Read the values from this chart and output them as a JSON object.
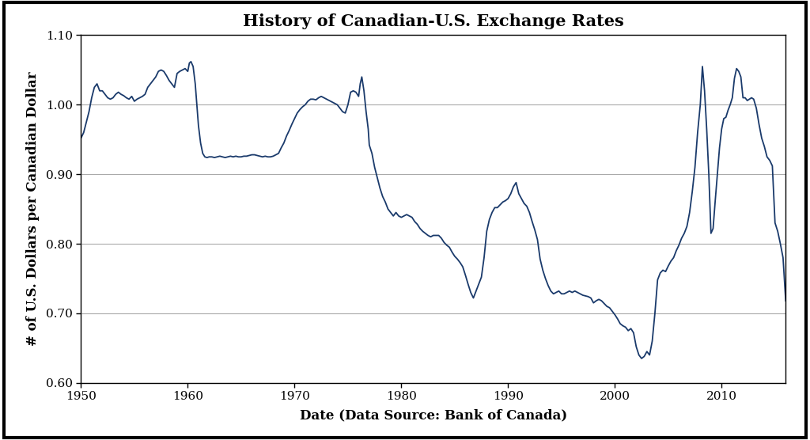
{
  "title": "History of Canadian-U.S. Exchange Rates",
  "xlabel": "Date (Data Source: Bank of Canada)",
  "ylabel": "# of U.S. Dollars per Canadian Dollar",
  "xlim": [
    1950,
    2016
  ],
  "ylim": [
    0.6,
    1.1
  ],
  "yticks": [
    0.6,
    0.7,
    0.8,
    0.9,
    1.0,
    1.1
  ],
  "xticks": [
    1950,
    1960,
    1970,
    1980,
    1990,
    2000,
    2010
  ],
  "line_color": "#1a3a6b",
  "line_width": 1.3,
  "background_color": "#ffffff",
  "title_fontsize": 15,
  "label_fontsize": 12,
  "tick_fontsize": 11,
  "data": [
    [
      1950.0,
      0.952
    ],
    [
      1950.25,
      0.96
    ],
    [
      1950.5,
      0.975
    ],
    [
      1950.75,
      0.99
    ],
    [
      1951.0,
      1.01
    ],
    [
      1951.25,
      1.025
    ],
    [
      1951.5,
      1.03
    ],
    [
      1951.75,
      1.02
    ],
    [
      1952.0,
      1.02
    ],
    [
      1952.25,
      1.015
    ],
    [
      1952.5,
      1.01
    ],
    [
      1952.75,
      1.008
    ],
    [
      1953.0,
      1.01
    ],
    [
      1953.25,
      1.015
    ],
    [
      1953.5,
      1.018
    ],
    [
      1953.75,
      1.015
    ],
    [
      1954.0,
      1.013
    ],
    [
      1954.25,
      1.01
    ],
    [
      1954.5,
      1.008
    ],
    [
      1954.75,
      1.012
    ],
    [
      1955.0,
      1.005
    ],
    [
      1955.25,
      1.008
    ],
    [
      1955.5,
      1.01
    ],
    [
      1955.75,
      1.012
    ],
    [
      1956.0,
      1.015
    ],
    [
      1956.25,
      1.025
    ],
    [
      1956.5,
      1.03
    ],
    [
      1956.75,
      1.035
    ],
    [
      1957.0,
      1.04
    ],
    [
      1957.25,
      1.048
    ],
    [
      1957.5,
      1.05
    ],
    [
      1957.75,
      1.048
    ],
    [
      1958.0,
      1.042
    ],
    [
      1958.25,
      1.035
    ],
    [
      1958.5,
      1.03
    ],
    [
      1958.75,
      1.025
    ],
    [
      1959.0,
      1.045
    ],
    [
      1959.25,
      1.048
    ],
    [
      1959.5,
      1.05
    ],
    [
      1959.75,
      1.052
    ],
    [
      1960.0,
      1.048
    ],
    [
      1960.15,
      1.06
    ],
    [
      1960.3,
      1.062
    ],
    [
      1960.5,
      1.055
    ],
    [
      1960.7,
      1.03
    ],
    [
      1960.9,
      0.99
    ],
    [
      1961.0,
      0.97
    ],
    [
      1961.2,
      0.945
    ],
    [
      1961.4,
      0.93
    ],
    [
      1961.6,
      0.925
    ],
    [
      1961.8,
      0.924
    ],
    [
      1962.0,
      0.925
    ],
    [
      1962.25,
      0.925
    ],
    [
      1962.5,
      0.924
    ],
    [
      1962.75,
      0.925
    ],
    [
      1963.0,
      0.926
    ],
    [
      1963.25,
      0.925
    ],
    [
      1963.5,
      0.924
    ],
    [
      1963.75,
      0.925
    ],
    [
      1964.0,
      0.926
    ],
    [
      1964.25,
      0.925
    ],
    [
      1964.5,
      0.926
    ],
    [
      1964.75,
      0.925
    ],
    [
      1965.0,
      0.925
    ],
    [
      1965.25,
      0.926
    ],
    [
      1965.5,
      0.926
    ],
    [
      1965.75,
      0.927
    ],
    [
      1966.0,
      0.928
    ],
    [
      1966.25,
      0.928
    ],
    [
      1966.5,
      0.927
    ],
    [
      1966.75,
      0.926
    ],
    [
      1967.0,
      0.925
    ],
    [
      1967.25,
      0.926
    ],
    [
      1967.5,
      0.925
    ],
    [
      1967.75,
      0.925
    ],
    [
      1968.0,
      0.926
    ],
    [
      1968.25,
      0.928
    ],
    [
      1968.5,
      0.93
    ],
    [
      1968.75,
      0.938
    ],
    [
      1969.0,
      0.945
    ],
    [
      1969.25,
      0.955
    ],
    [
      1969.5,
      0.963
    ],
    [
      1969.75,
      0.972
    ],
    [
      1970.0,
      0.98
    ],
    [
      1970.25,
      0.988
    ],
    [
      1970.5,
      0.993
    ],
    [
      1970.75,
      0.997
    ],
    [
      1971.0,
      1.0
    ],
    [
      1971.25,
      1.005
    ],
    [
      1971.5,
      1.008
    ],
    [
      1971.75,
      1.008
    ],
    [
      1972.0,
      1.007
    ],
    [
      1972.25,
      1.01
    ],
    [
      1972.5,
      1.012
    ],
    [
      1972.75,
      1.01
    ],
    [
      1973.0,
      1.008
    ],
    [
      1973.25,
      1.006
    ],
    [
      1973.5,
      1.004
    ],
    [
      1973.75,
      1.002
    ],
    [
      1974.0,
      1.0
    ],
    [
      1974.25,
      0.995
    ],
    [
      1974.5,
      0.99
    ],
    [
      1974.75,
      0.988
    ],
    [
      1975.0,
      1.0
    ],
    [
      1975.25,
      1.018
    ],
    [
      1975.5,
      1.02
    ],
    [
      1975.75,
      1.018
    ],
    [
      1976.0,
      1.012
    ],
    [
      1976.15,
      1.03
    ],
    [
      1976.3,
      1.04
    ],
    [
      1976.5,
      1.02
    ],
    [
      1976.7,
      0.99
    ],
    [
      1976.9,
      0.965
    ],
    [
      1977.0,
      0.942
    ],
    [
      1977.25,
      0.93
    ],
    [
      1977.5,
      0.91
    ],
    [
      1977.75,
      0.895
    ],
    [
      1978.0,
      0.88
    ],
    [
      1978.25,
      0.868
    ],
    [
      1978.5,
      0.86
    ],
    [
      1978.75,
      0.85
    ],
    [
      1979.0,
      0.845
    ],
    [
      1979.25,
      0.84
    ],
    [
      1979.5,
      0.845
    ],
    [
      1979.75,
      0.84
    ],
    [
      1980.0,
      0.838
    ],
    [
      1980.25,
      0.84
    ],
    [
      1980.5,
      0.842
    ],
    [
      1980.75,
      0.84
    ],
    [
      1981.0,
      0.838
    ],
    [
      1981.25,
      0.832
    ],
    [
      1981.5,
      0.828
    ],
    [
      1981.75,
      0.822
    ],
    [
      1982.0,
      0.818
    ],
    [
      1982.25,
      0.815
    ],
    [
      1982.5,
      0.812
    ],
    [
      1982.75,
      0.81
    ],
    [
      1983.0,
      0.812
    ],
    [
      1983.25,
      0.812
    ],
    [
      1983.5,
      0.812
    ],
    [
      1983.75,
      0.808
    ],
    [
      1984.0,
      0.802
    ],
    [
      1984.25,
      0.798
    ],
    [
      1984.5,
      0.795
    ],
    [
      1984.75,
      0.788
    ],
    [
      1985.0,
      0.782
    ],
    [
      1985.25,
      0.778
    ],
    [
      1985.5,
      0.773
    ],
    [
      1985.75,
      0.767
    ],
    [
      1986.0,
      0.755
    ],
    [
      1986.25,
      0.742
    ],
    [
      1986.5,
      0.73
    ],
    [
      1986.75,
      0.722
    ],
    [
      1987.0,
      0.732
    ],
    [
      1987.25,
      0.742
    ],
    [
      1987.5,
      0.752
    ],
    [
      1987.75,
      0.78
    ],
    [
      1988.0,
      0.818
    ],
    [
      1988.25,
      0.835
    ],
    [
      1988.5,
      0.845
    ],
    [
      1988.75,
      0.852
    ],
    [
      1989.0,
      0.852
    ],
    [
      1989.25,
      0.856
    ],
    [
      1989.5,
      0.86
    ],
    [
      1989.75,
      0.862
    ],
    [
      1990.0,
      0.865
    ],
    [
      1990.25,
      0.872
    ],
    [
      1990.5,
      0.882
    ],
    [
      1990.75,
      0.888
    ],
    [
      1991.0,
      0.872
    ],
    [
      1991.25,
      0.865
    ],
    [
      1991.5,
      0.858
    ],
    [
      1991.75,
      0.854
    ],
    [
      1992.0,
      0.845
    ],
    [
      1992.25,
      0.832
    ],
    [
      1992.5,
      0.82
    ],
    [
      1992.75,
      0.806
    ],
    [
      1993.0,
      0.778
    ],
    [
      1993.25,
      0.762
    ],
    [
      1993.5,
      0.75
    ],
    [
      1993.75,
      0.74
    ],
    [
      1994.0,
      0.732
    ],
    [
      1994.25,
      0.728
    ],
    [
      1994.5,
      0.73
    ],
    [
      1994.75,
      0.732
    ],
    [
      1995.0,
      0.728
    ],
    [
      1995.25,
      0.728
    ],
    [
      1995.5,
      0.73
    ],
    [
      1995.75,
      0.732
    ],
    [
      1996.0,
      0.73
    ],
    [
      1996.25,
      0.732
    ],
    [
      1996.5,
      0.73
    ],
    [
      1996.75,
      0.728
    ],
    [
      1997.0,
      0.726
    ],
    [
      1997.25,
      0.725
    ],
    [
      1997.5,
      0.724
    ],
    [
      1997.75,
      0.722
    ],
    [
      1998.0,
      0.715
    ],
    [
      1998.25,
      0.718
    ],
    [
      1998.5,
      0.72
    ],
    [
      1998.75,
      0.718
    ],
    [
      1999.0,
      0.714
    ],
    [
      1999.25,
      0.71
    ],
    [
      1999.5,
      0.708
    ],
    [
      1999.75,
      0.703
    ],
    [
      2000.0,
      0.698
    ],
    [
      2000.25,
      0.692
    ],
    [
      2000.5,
      0.685
    ],
    [
      2000.75,
      0.682
    ],
    [
      2001.0,
      0.68
    ],
    [
      2001.25,
      0.675
    ],
    [
      2001.5,
      0.678
    ],
    [
      2001.75,
      0.672
    ],
    [
      2002.0,
      0.652
    ],
    [
      2002.25,
      0.64
    ],
    [
      2002.5,
      0.635
    ],
    [
      2002.75,
      0.638
    ],
    [
      2003.0,
      0.645
    ],
    [
      2003.25,
      0.64
    ],
    [
      2003.5,
      0.66
    ],
    [
      2003.75,
      0.7
    ],
    [
      2004.0,
      0.748
    ],
    [
      2004.25,
      0.758
    ],
    [
      2004.5,
      0.762
    ],
    [
      2004.75,
      0.76
    ],
    [
      2005.0,
      0.768
    ],
    [
      2005.25,
      0.775
    ],
    [
      2005.5,
      0.78
    ],
    [
      2005.75,
      0.79
    ],
    [
      2006.0,
      0.798
    ],
    [
      2006.25,
      0.808
    ],
    [
      2006.5,
      0.815
    ],
    [
      2006.75,
      0.825
    ],
    [
      2007.0,
      0.845
    ],
    [
      2007.25,
      0.875
    ],
    [
      2007.5,
      0.91
    ],
    [
      2007.75,
      0.96
    ],
    [
      2008.0,
      1.0
    ],
    [
      2008.2,
      1.055
    ],
    [
      2008.4,
      1.02
    ],
    [
      2008.6,
      0.965
    ],
    [
      2008.8,
      0.9
    ],
    [
      2009.0,
      0.815
    ],
    [
      2009.2,
      0.822
    ],
    [
      2009.4,
      0.862
    ],
    [
      2009.6,
      0.9
    ],
    [
      2009.8,
      0.938
    ],
    [
      2010.0,
      0.965
    ],
    [
      2010.2,
      0.98
    ],
    [
      2010.4,
      0.982
    ],
    [
      2010.6,
      0.992
    ],
    [
      2010.8,
      1.0
    ],
    [
      2011.0,
      1.01
    ],
    [
      2011.2,
      1.038
    ],
    [
      2011.4,
      1.052
    ],
    [
      2011.6,
      1.048
    ],
    [
      2011.8,
      1.04
    ],
    [
      2012.0,
      1.01
    ],
    [
      2012.2,
      1.01
    ],
    [
      2012.4,
      1.006
    ],
    [
      2012.6,
      1.008
    ],
    [
      2012.8,
      1.01
    ],
    [
      2013.0,
      1.008
    ],
    [
      2013.25,
      0.995
    ],
    [
      2013.5,
      0.972
    ],
    [
      2013.75,
      0.952
    ],
    [
      2014.0,
      0.94
    ],
    [
      2014.25,
      0.925
    ],
    [
      2014.5,
      0.92
    ],
    [
      2014.75,
      0.912
    ],
    [
      2015.0,
      0.83
    ],
    [
      2015.25,
      0.818
    ],
    [
      2015.5,
      0.8
    ],
    [
      2015.75,
      0.78
    ],
    [
      2016.0,
      0.718
    ]
  ]
}
